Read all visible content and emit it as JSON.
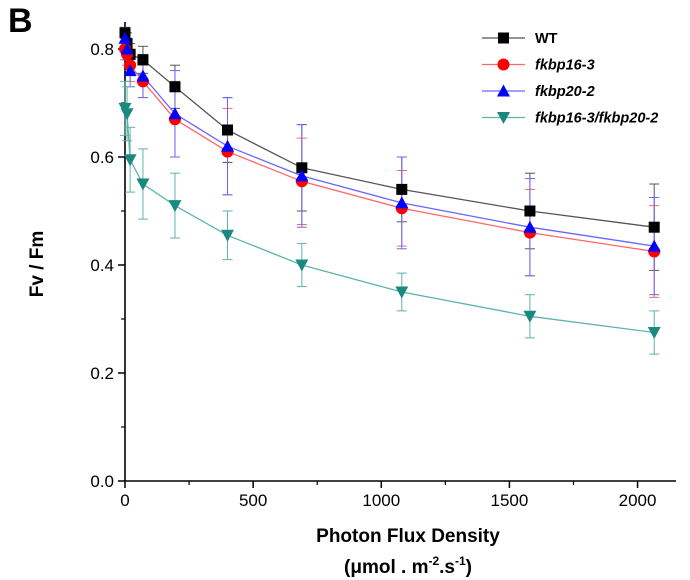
{
  "panel_label": "B",
  "chart_data": {
    "type": "line",
    "title": "",
    "xlabel": "Photon Flux Density",
    "xlabel_units_line": "(μmol . m-2.s-1)",
    "xlabel_units_parts": {
      "pre": "(μmol . m",
      "sup1": "-2",
      "mid": ".s",
      "sup2": "-1",
      "post": ")"
    },
    "ylabel": "Fv / Fm",
    "xlim": [
      0,
      2150
    ],
    "ylim": [
      0.0,
      0.85
    ],
    "xticks": [
      0,
      500,
      1000,
      1500,
      2000
    ],
    "xtick_labels": [
      "0",
      "500",
      "1000",
      "1500",
      "2000"
    ],
    "yticks": [
      0.0,
      0.2,
      0.4,
      0.6,
      0.8
    ],
    "ytick_labels": [
      "0.0",
      "0.2",
      "0.4",
      "0.6",
      "0.8"
    ],
    "x": [
      0,
      8,
      20,
      70,
      195,
      400,
      690,
      1080,
      1580,
      2065
    ],
    "grid": false,
    "legend_position": "top-right",
    "series": [
      {
        "name": "WT",
        "marker": "square",
        "color": "#000000",
        "line_color": "#555555",
        "italic": false,
        "values": [
          0.83,
          0.81,
          0.79,
          0.78,
          0.73,
          0.65,
          0.58,
          0.54,
          0.5,
          0.47
        ],
        "errors": [
          0.01,
          0.02,
          0.02,
          0.025,
          0.04,
          0.06,
          0.08,
          0.06,
          0.07,
          0.08
        ]
      },
      {
        "name": "fkbp16-3",
        "marker": "circle",
        "color": "#ff0000",
        "line_color": "#ff6666",
        "italic": true,
        "values": [
          0.8,
          0.79,
          0.77,
          0.74,
          0.67,
          0.61,
          0.555,
          0.505,
          0.46,
          0.425
        ],
        "errors": [
          0.02,
          0.02,
          0.03,
          0.03,
          0.07,
          0.08,
          0.08,
          0.07,
          0.08,
          0.085
        ]
      },
      {
        "name": "fkbp20-2",
        "marker": "triangle-up",
        "color": "#0000ff",
        "line_color": "#6666ff",
        "italic": true,
        "values": [
          0.82,
          0.8,
          0.76,
          0.75,
          0.68,
          0.62,
          0.565,
          0.515,
          0.47,
          0.435
        ],
        "errors": [
          0.02,
          0.02,
          0.03,
          0.04,
          0.08,
          0.09,
          0.095,
          0.085,
          0.09,
          0.09
        ]
      },
      {
        "name": "fkbp16-3/fkbp20-2",
        "marker": "triangle-down",
        "color": "#1a8a80",
        "line_color": "#5fb3ab",
        "italic": true,
        "values": [
          0.69,
          0.68,
          0.595,
          0.55,
          0.51,
          0.455,
          0.4,
          0.35,
          0.305,
          0.275
        ],
        "errors": [
          0.05,
          0.05,
          0.06,
          0.065,
          0.06,
          0.045,
          0.04,
          0.035,
          0.04,
          0.04
        ]
      }
    ]
  }
}
